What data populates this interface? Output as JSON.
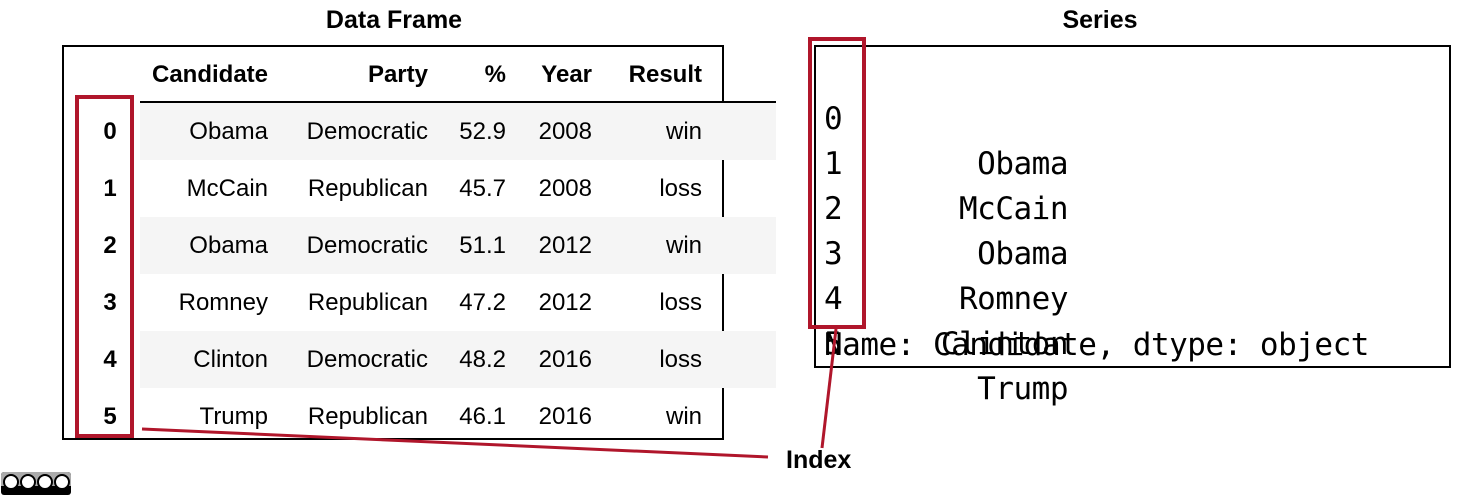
{
  "dataframe": {
    "title": "Data Frame",
    "columns": [
      "Candidate",
      "Party",
      "%",
      "Year",
      "Result"
    ],
    "rows": [
      {
        "index": "0",
        "Candidate": "Obama",
        "Party": "Democratic",
        "%": "52.9",
        "Year": "2008",
        "Result": "win"
      },
      {
        "index": "1",
        "Candidate": "McCain",
        "Party": "Republican",
        "%": "45.7",
        "Year": "2008",
        "Result": "loss"
      },
      {
        "index": "2",
        "Candidate": "Obama",
        "Party": "Democratic",
        "%": "51.1",
        "Year": "2012",
        "Result": "win"
      },
      {
        "index": "3",
        "Candidate": "Romney",
        "Party": "Republican",
        "%": "47.2",
        "Year": "2012",
        "Result": "loss"
      },
      {
        "index": "4",
        "Candidate": "Clinton",
        "Party": "Democratic",
        "%": "48.2",
        "Year": "2016",
        "Result": "loss"
      },
      {
        "index": "5",
        "Candidate": "Trump",
        "Party": "Republican",
        "%": "46.1",
        "Year": "2016",
        "Result": "win"
      }
    ]
  },
  "series": {
    "title": "Series",
    "rows": [
      {
        "index": "0",
        "value": "Obama"
      },
      {
        "index": "1",
        "value": "McCain"
      },
      {
        "index": "2",
        "value": "Obama"
      },
      {
        "index": "3",
        "value": "Romney"
      },
      {
        "index": "4",
        "value": "Clinton"
      },
      {
        "index": "5",
        "value": "Trump"
      }
    ],
    "footer": "Name: Candidate, dtype: object"
  },
  "index_label": "Index",
  "colors": {
    "highlight": "#b0162b",
    "row_shade": "#f5f5f5"
  },
  "license_badge_icon": "cc-by-nc-sa-icon"
}
